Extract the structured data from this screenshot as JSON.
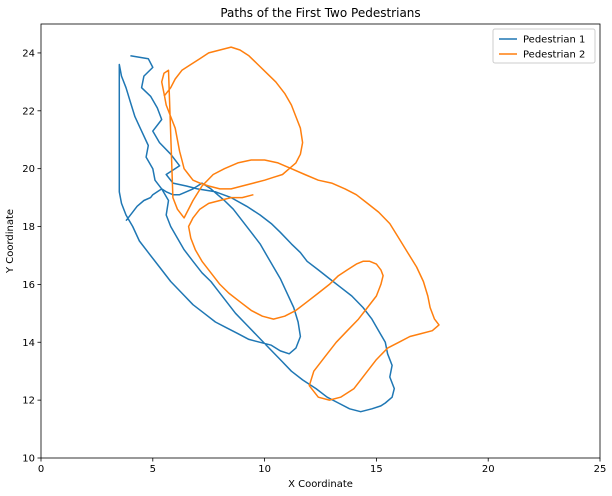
{
  "chart_data": {
    "type": "line",
    "title": "Paths of the First Two Pedestrians",
    "xlabel": "X Coordinate",
    "ylabel": "Y Coordinate",
    "xlim": [
      0,
      25
    ],
    "ylim": [
      10,
      25
    ],
    "xticks": [
      0,
      5,
      10,
      15,
      20,
      25
    ],
    "yticks": [
      10,
      12,
      14,
      16,
      18,
      20,
      22,
      24
    ],
    "grid": false,
    "legend_position": "top-right",
    "series": [
      {
        "name": "Pedestrian 1",
        "color": "#1f77b4",
        "x": [
          4.0,
          4.8,
          5.0,
          4.6,
          4.5,
          4.9,
          5.2,
          5.4,
          5.0,
          5.3,
          5.8,
          6.2,
          5.6,
          5.9,
          6.5,
          7.0,
          7.8,
          8.5,
          9.2,
          9.8,
          10.3,
          10.7,
          11.2,
          11.6,
          11.9,
          12.4,
          12.9,
          13.4,
          13.9,
          14.4,
          14.8,
          15.1,
          15.4,
          15.5,
          15.7,
          15.6,
          15.8,
          15.7,
          15.4,
          15.2,
          14.8,
          14.3,
          13.8,
          13.3,
          12.8,
          12.3,
          11.7,
          11.2,
          10.7,
          10.2,
          9.7,
          9.2,
          8.7,
          8.3,
          7.9,
          7.6,
          7.2,
          6.8,
          6.4,
          6.1,
          5.8,
          5.6,
          5.7,
          5.4,
          5.1,
          5.0,
          4.7,
          4.8,
          4.5,
          4.2,
          4.0,
          3.8,
          3.6,
          3.5,
          3.5,
          3.6,
          3.8,
          4.1,
          4.4,
          4.8,
          5.3,
          5.8,
          6.3,
          6.8,
          7.3,
          7.8,
          8.3,
          8.8,
          9.3,
          9.8,
          10.3,
          10.7,
          11.1,
          11.4,
          11.6,
          11.5,
          11.3,
          11.0,
          10.7,
          10.4,
          10.1,
          9.8,
          9.4,
          9.0,
          8.6,
          8.2,
          7.9,
          7.6,
          7.4,
          7.2,
          7.0,
          6.8,
          6.5,
          6.2,
          5.9,
          5.6,
          5.4,
          5.2,
          5.0,
          4.9,
          4.6,
          4.3,
          4.1,
          3.8
        ],
        "y": [
          23.9,
          23.8,
          23.5,
          23.2,
          22.8,
          22.5,
          22.1,
          21.7,
          21.3,
          20.9,
          20.5,
          20.1,
          19.8,
          19.5,
          19.4,
          19.3,
          19.2,
          19.0,
          18.7,
          18.4,
          18.1,
          17.8,
          17.4,
          17.1,
          16.8,
          16.5,
          16.2,
          15.9,
          15.6,
          15.2,
          14.8,
          14.4,
          14.0,
          13.6,
          13.2,
          12.8,
          12.4,
          12.1,
          11.9,
          11.8,
          11.7,
          11.6,
          11.7,
          11.9,
          12.1,
          12.4,
          12.7,
          13.0,
          13.4,
          13.8,
          14.2,
          14.6,
          15.0,
          15.4,
          15.8,
          16.1,
          16.4,
          16.8,
          17.2,
          17.6,
          18.0,
          18.4,
          18.9,
          19.3,
          19.6,
          20.0,
          20.4,
          20.8,
          21.3,
          21.8,
          22.3,
          22.8,
          23.2,
          23.6,
          19.2,
          18.8,
          18.4,
          18.0,
          17.5,
          17.1,
          16.6,
          16.1,
          15.7,
          15.3,
          15.0,
          14.7,
          14.5,
          14.3,
          14.1,
          14.0,
          13.9,
          13.7,
          13.6,
          13.8,
          14.2,
          14.7,
          15.2,
          15.7,
          16.2,
          16.6,
          17.0,
          17.4,
          17.8,
          18.2,
          18.6,
          18.9,
          19.1,
          19.3,
          19.4,
          19.5,
          19.4,
          19.3,
          19.2,
          19.1,
          19.1,
          19.2,
          19.3,
          19.2,
          19.1,
          19.0,
          18.9,
          18.7,
          18.5,
          18.2
        ]
      },
      {
        "name": "Pedestrian 2",
        "color": "#ff7f0e",
        "x": [
          5.5,
          5.8,
          6.0,
          6.3,
          6.7,
          7.1,
          7.5,
          8.0,
          8.5,
          8.9,
          9.3,
          9.7,
          10.1,
          10.5,
          10.9,
          11.2,
          11.4,
          11.6,
          11.7,
          11.6,
          11.4,
          11.1,
          10.8,
          10.4,
          10.0,
          9.5,
          9.0,
          8.5,
          8.0,
          7.5,
          7.1,
          6.8,
          6.6,
          6.4,
          6.3,
          6.2,
          6.1,
          6.0,
          5.8,
          5.6,
          5.5,
          5.4,
          5.5,
          5.7,
          5.9,
          6.1,
          6.4,
          6.8,
          7.2,
          7.7,
          8.2,
          8.8,
          9.4,
          10.0,
          10.6,
          11.2,
          11.8,
          12.4,
          13.0,
          13.6,
          14.1,
          14.6,
          15.1,
          15.6,
          16.0,
          16.4,
          16.8,
          17.1,
          17.3,
          17.4,
          17.6,
          17.8,
          17.5,
          17.0,
          16.5,
          16.0,
          15.5,
          15.0,
          14.5,
          14.0,
          13.4,
          12.9,
          12.4,
          12.0,
          12.2,
          12.7,
          13.2,
          13.7,
          14.2,
          14.6,
          15.0,
          15.2,
          15.3,
          15.2,
          15.0,
          14.7,
          14.4,
          14.1,
          13.7,
          13.3,
          12.9,
          12.4,
          11.9,
          11.4,
          10.9,
          10.4,
          9.9,
          9.4,
          8.9,
          8.4,
          8.0,
          7.6,
          7.2,
          6.9,
          6.7,
          6.6,
          6.8,
          7.1,
          7.5,
          8.0,
          8.5,
          9.0,
          9.5
        ],
        "y": [
          22.5,
          22.8,
          23.1,
          23.4,
          23.6,
          23.8,
          24.0,
          24.1,
          24.2,
          24.1,
          23.9,
          23.6,
          23.3,
          23.0,
          22.6,
          22.2,
          21.8,
          21.4,
          20.9,
          20.5,
          20.2,
          20.0,
          19.8,
          19.7,
          19.6,
          19.5,
          19.4,
          19.3,
          19.3,
          19.4,
          19.5,
          19.6,
          19.8,
          20.0,
          20.3,
          20.6,
          21.0,
          21.4,
          21.8,
          22.2,
          22.6,
          23.0,
          23.3,
          23.4,
          19.0,
          18.6,
          18.3,
          18.9,
          19.4,
          19.8,
          20.0,
          20.2,
          20.3,
          20.3,
          20.2,
          20.0,
          19.8,
          19.6,
          19.5,
          19.3,
          19.1,
          18.8,
          18.5,
          18.1,
          17.6,
          17.1,
          16.6,
          16.1,
          15.6,
          15.2,
          14.8,
          14.6,
          14.4,
          14.3,
          14.2,
          14.0,
          13.8,
          13.4,
          12.9,
          12.4,
          12.1,
          12.0,
          12.1,
          12.5,
          13.0,
          13.5,
          14.0,
          14.4,
          14.8,
          15.2,
          15.6,
          16.0,
          16.3,
          16.5,
          16.7,
          16.8,
          16.8,
          16.7,
          16.5,
          16.3,
          16.0,
          15.7,
          15.4,
          15.1,
          14.9,
          14.8,
          14.9,
          15.1,
          15.4,
          15.7,
          16.0,
          16.4,
          16.8,
          17.2,
          17.6,
          18.0,
          18.3,
          18.6,
          18.8,
          18.9,
          19.0,
          19.0,
          19.1
        ]
      }
    ]
  }
}
